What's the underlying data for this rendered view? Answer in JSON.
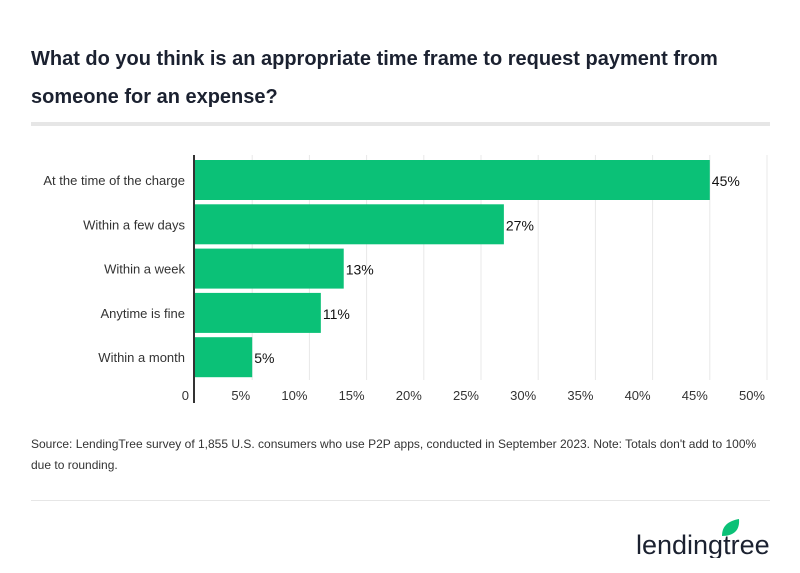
{
  "title": "What do you think is an appropriate time frame to request payment from someone for an expense?",
  "chart_data": {
    "type": "bar",
    "orientation": "horizontal",
    "categories": [
      "At the time of the charge",
      "Within a few days",
      "Within a week",
      "Anytime is fine",
      "Within a month"
    ],
    "values": [
      45,
      27,
      13,
      11,
      5
    ],
    "data_labels": [
      "45%",
      "27%",
      "13%",
      "11%",
      "5%"
    ],
    "xlim": [
      0,
      50
    ],
    "ticks": [
      0,
      5,
      10,
      15,
      20,
      25,
      30,
      35,
      40,
      45,
      50
    ],
    "tick_labels": [
      "0",
      "5%",
      "10%",
      "15%",
      "20%",
      "25%",
      "30%",
      "35%",
      "40%",
      "45%",
      "50%"
    ],
    "grid": true,
    "bar_color": "#0bc177"
  },
  "source": "Source: LendingTree survey of 1,855 U.S. consumers who use P2P apps, conducted in September 2023. Note: Totals don't add to 100% due to rounding.",
  "logo": {
    "text": "lendingtree",
    "icon": "leaf-icon",
    "color": "#0bc177"
  }
}
